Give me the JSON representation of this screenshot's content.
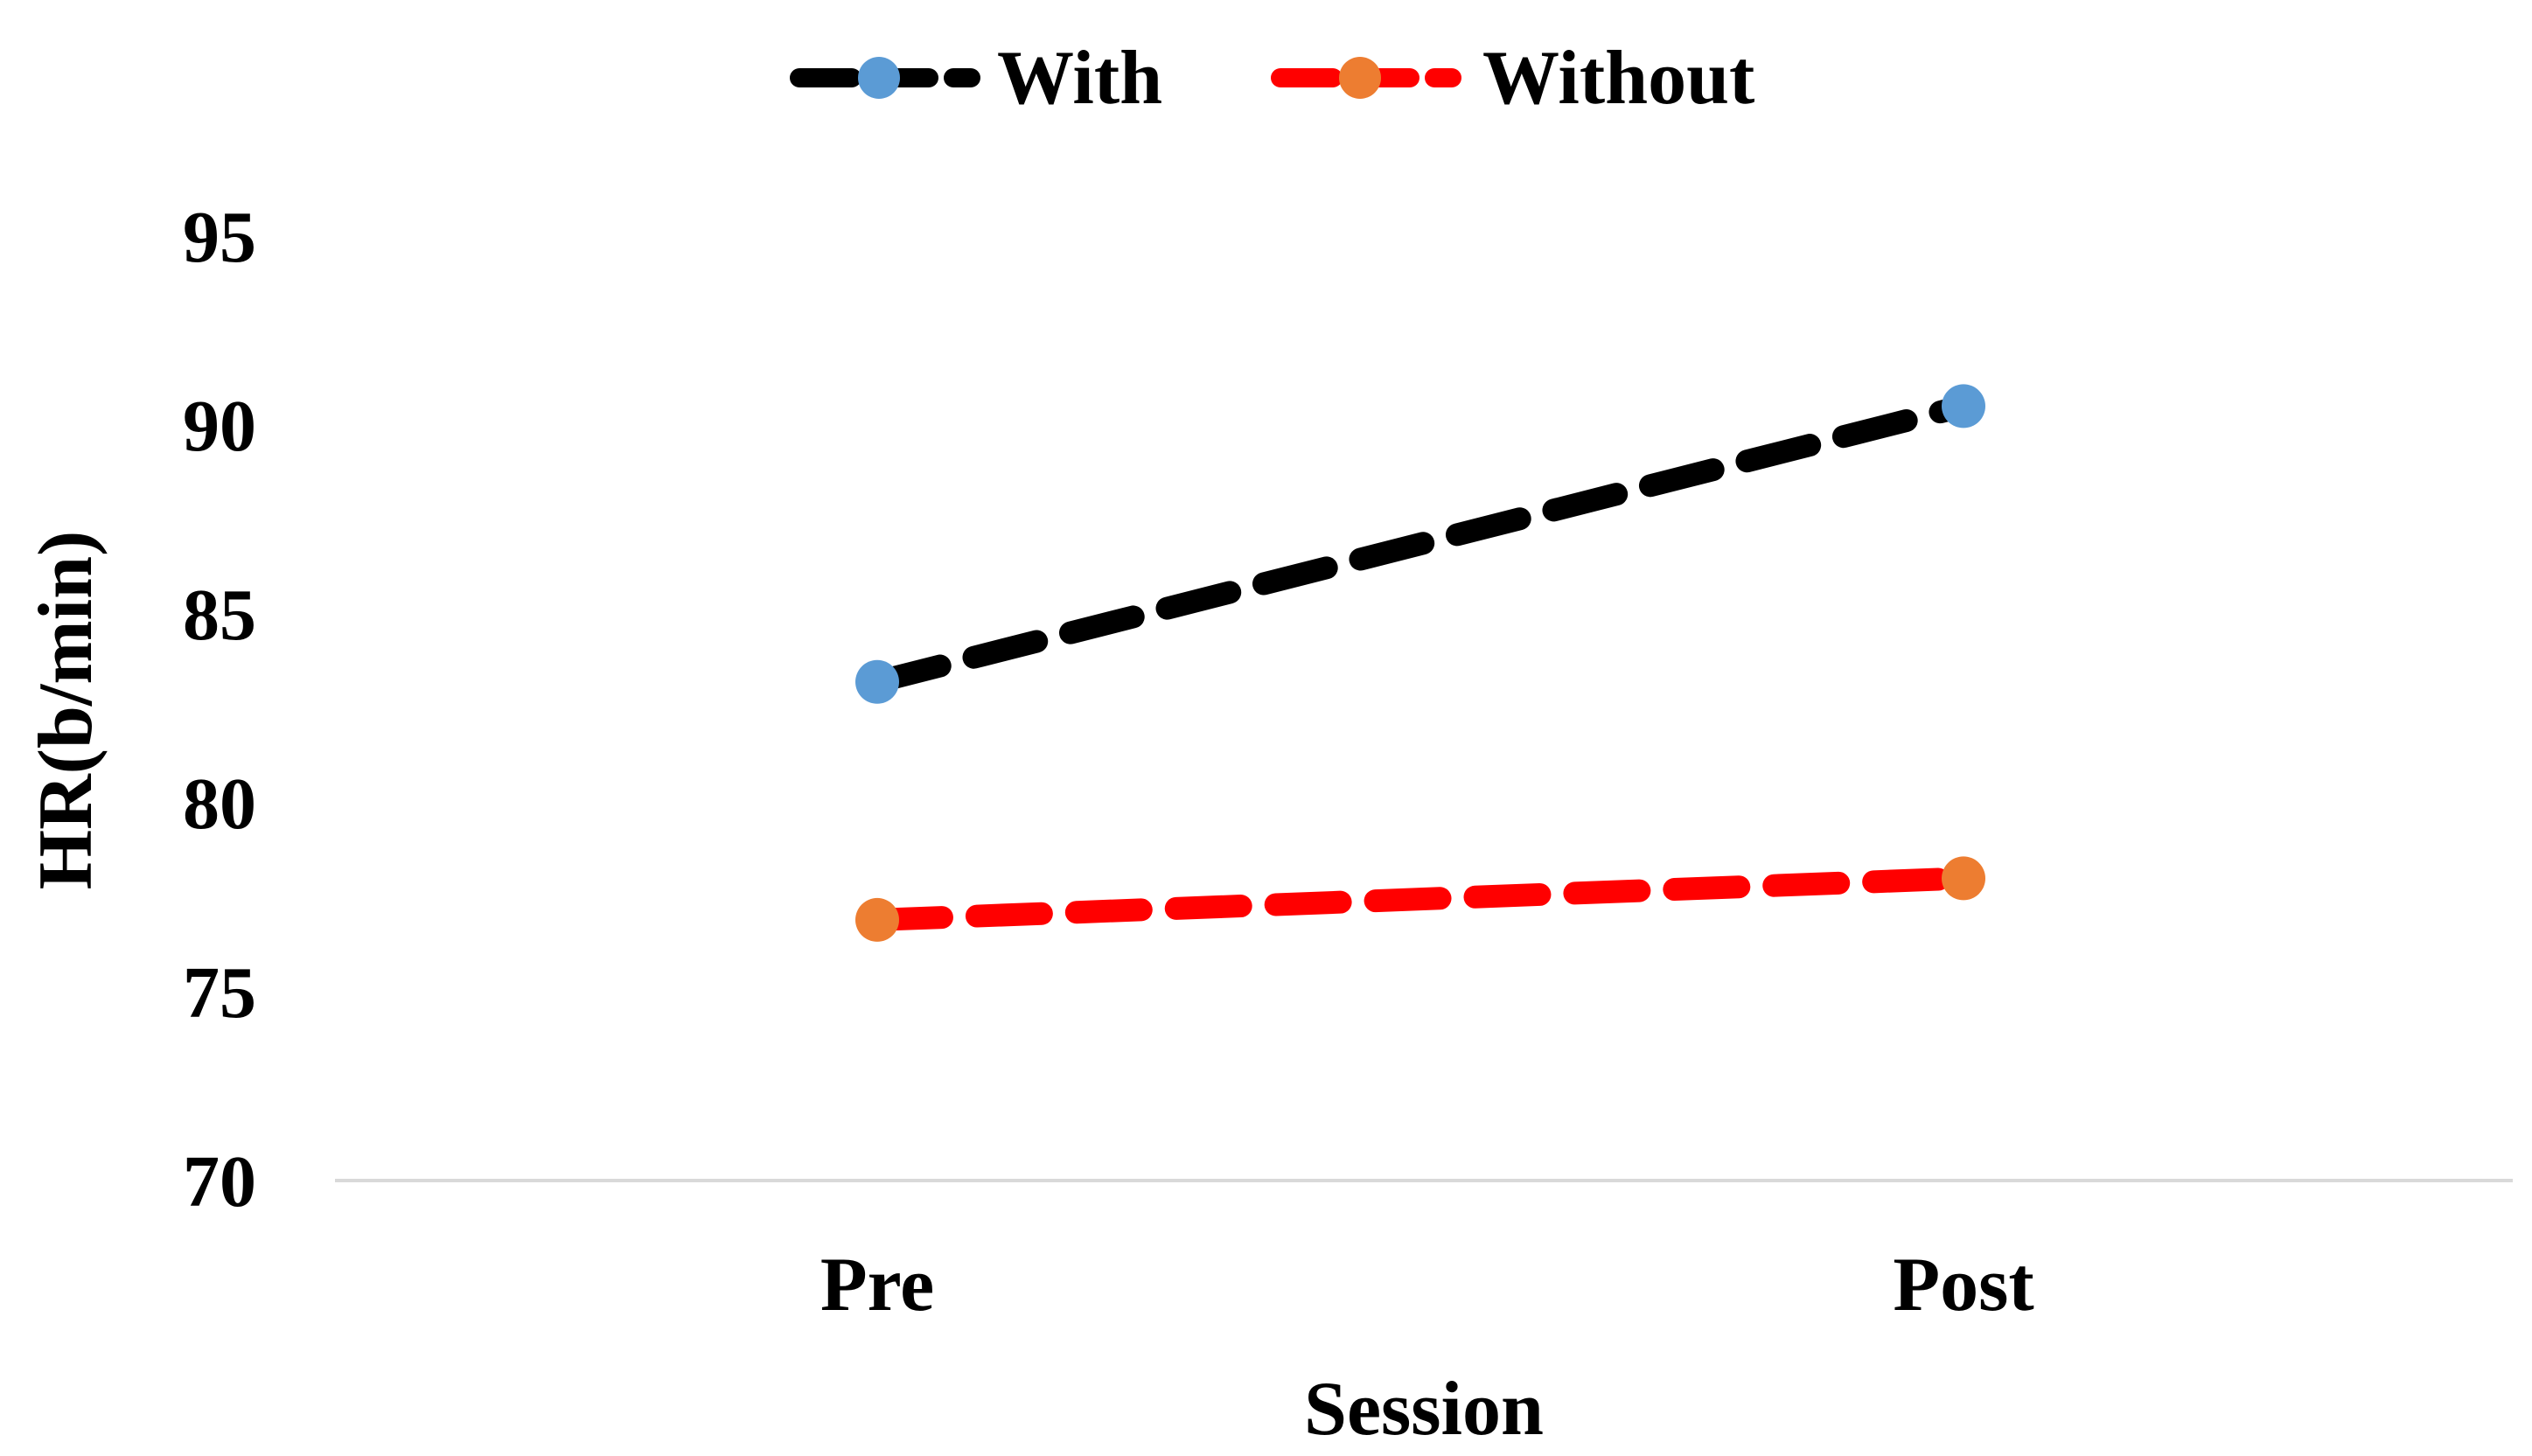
{
  "chart_data": {
    "type": "line",
    "title": "",
    "xlabel": "Session",
    "ylabel": "HR(b/min)",
    "categories": [
      "Pre",
      "Post"
    ],
    "ylim": [
      70,
      95
    ],
    "yticks": [
      70,
      75,
      80,
      85,
      90,
      95
    ],
    "grid": false,
    "legend_position": "top-center",
    "series": [
      {
        "name": "With",
        "values": [
          83.2,
          90.5
        ],
        "line_color": "#000000",
        "marker_color": "#5B9BD5",
        "line_style": "dashed"
      },
      {
        "name": "Without",
        "values": [
          76.9,
          78.0
        ],
        "line_color": "#FF0000",
        "marker_color": "#ED7D31",
        "line_style": "dashed"
      }
    ]
  }
}
